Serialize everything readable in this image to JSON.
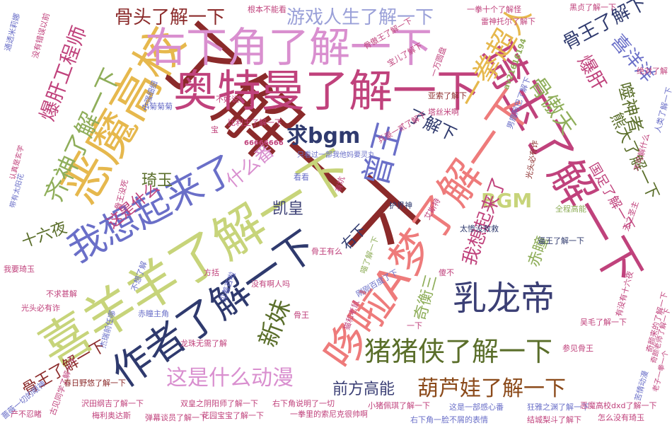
{
  "words": [
    {
      "text": "了解一下",
      "color": "#8b2a2a"
    },
    {
      "text": "喜羊羊了解一下",
      "color": "#c7d47a"
    },
    {
      "text": "奥特曼了解一下",
      "color": "#c0427c"
    },
    {
      "text": "恶魔高校",
      "color": "#e6b84d"
    },
    {
      "text": "右下角了解一下",
      "color": "#d98fcf"
    },
    {
      "text": "琦玉了解一下",
      "color": "#c0427c"
    },
    {
      "text": "哆啦A梦了解一下",
      "color": "#ee7b7b"
    },
    {
      "text": "作者了解一下",
      "color": "#2f3a6e"
    },
    {
      "text": "我想起来了",
      "color": "#6a6fc8"
    },
    {
      "text": "乳龙帝",
      "color": "#3b3f75"
    },
    {
      "text": "猪猪侠了解一下",
      "color": "#5a6e2a"
    },
    {
      "text": "曾王",
      "color": "#6a6fc8"
    },
    {
      "text": "一拳超人",
      "color": "#e6b84d"
    },
    {
      "text": "齐神了解一下",
      "color": "#8fae5a"
    },
    {
      "text": "爆肝工程师",
      "color": "#c0427c"
    },
    {
      "text": "骨头了解一下",
      "color": "#8b2a2a"
    },
    {
      "text": "游戏人生了解一下",
      "color": "#9aa0d8"
    },
    {
      "text": "骨王了解下",
      "color": "#2f3a6e"
    },
    {
      "text": "骨傲天",
      "color": "#8fae5a"
    },
    {
      "text": "熊大了解一下",
      "color": "#5a6e2a"
    },
    {
      "text": "噬神者",
      "color": "#5a6e2a"
    },
    {
      "text": "喜洋洋",
      "color": "#6a6fc8"
    },
    {
      "text": "爆肝",
      "color": "#c0427c"
    },
    {
      "text": "求bgm",
      "color": "#2f3a6e"
    },
    {
      "text": "BGM",
      "color": "#c7d47a"
    },
    {
      "text": "新妹",
      "color": "#5a6e2a"
    },
    {
      "text": "葫芦娃了解一下",
      "color": "#8b4a1a"
    },
    {
      "text": "这是什么动漫",
      "color": "#d98fcf"
    },
    {
      "text": "前方高能",
      "color": "#3b3f75"
    },
    {
      "text": "凯皇",
      "color": "#3b3f75"
    },
    {
      "text": "什么番",
      "color": "#d98fcf"
    },
    {
      "text": "琦玉",
      "color": "#5a6e2a"
    },
    {
      "text": "这是什么",
      "color": "#c0427c"
    },
    {
      "text": "十六夜",
      "color": "#5a6e2a"
    },
    {
      "text": "我想起来了",
      "color": "#c0427c"
    },
    {
      "text": "赤瞳",
      "color": "#8fae5a"
    },
    {
      "text": "奇衡三",
      "color": "#8fae5a"
    },
    {
      "text": "右下",
      "color": "#2f3a6e"
    },
    {
      "text": "骨王了解一下",
      "color": "#8b2a2a"
    },
    {
      "text": "国足了解一下",
      "color": "#c0427c"
    },
    {
      "text": "了解下",
      "color": "#2f3a6e"
    },
    {
      "text": "通透米莉娜",
      "color": "#6a6fc8"
    },
    {
      "text": "没有错误以前",
      "color": "#c0427c"
    },
    {
      "text": "根本不能看",
      "color": "#c0427c"
    },
    {
      "text": "一拳十个了解怪",
      "color": "#c0427c"
    },
    {
      "text": "雷神托尔了解下",
      "color": "#c0427c"
    },
    {
      "text": "黑贞了解一下",
      "color": "#c0427c"
    },
    {
      "text": "骨傲王了解一下",
      "color": "#c0427c"
    },
    {
      "text": "av21616194",
      "color": "#8fae5a"
    },
    {
      "text": "宝儿了解下",
      "color": "#c0427c"
    },
    {
      "text": "一万圆盘",
      "color": "#c0427c"
    },
    {
      "text": "男鹿阿巴了解下",
      "color": "#6a6fc8"
    },
    {
      "text": "人类了解一下",
      "color": "#6a6fc8"
    },
    {
      "text": "亚索了解下",
      "color": "#8b2a2a"
    },
    {
      "text": "塔丝米啊",
      "color": "#c0427c"
    },
    {
      "text": "比利王了解一下",
      "color": "#c0427c"
    },
    {
      "text": "66666666",
      "color": "#c0427c"
    },
    {
      "text": "只看过一部我他妈要灵丸",
      "color": "#6a6fc8"
    },
    {
      "text": "兵豪一贰了解下",
      "color": "#c0427c"
    },
    {
      "text": "光头必有诈",
      "color": "#8b2a2a"
    },
    {
      "text": "不可解什么",
      "color": "#c0427c"
    },
    {
      "text": "小强细细",
      "color": "#6a6fc8"
    },
    {
      "text": "认真是玄学",
      "color": "#c0427c"
    },
    {
      "text": "带有太阳花",
      "color": "#6a6fc8"
    },
    {
      "text": "有坑",
      "color": "#c0427c"
    },
    {
      "text": "护界神",
      "color": "#2f3a6e"
    },
    {
      "text": "艾斯特",
      "color": "#c0427c"
    },
    {
      "text": "全程高能",
      "color": "#8fae5a"
    },
    {
      "text": "天之圣主",
      "color": "#c0427c"
    },
    {
      "text": "骨王有么",
      "color": "#c0427c"
    },
    {
      "text": "太惨没救救",
      "color": "#2f3a6e"
    },
    {
      "text": "逼王了解一下",
      "color": "#2f3a6e"
    },
    {
      "text": "喵了解一下",
      "color": "#8fae5a"
    },
    {
      "text": "没有啊人吗",
      "color": "#c0427c"
    },
    {
      "text": "见着百啦",
      "color": "#6a6fc8"
    },
    {
      "text": "赤瞳主角",
      "color": "#6a6fc8"
    },
    {
      "text": "猫和老鼠",
      "color": "#c0427c"
    },
    {
      "text": "杰瑞前任哪",
      "color": "#6a6fc8"
    },
    {
      "text": "有没有十六夜",
      "color": "#c0427c"
    },
    {
      "text": "奇颜来的了解一下",
      "color": "#c0427c"
    },
    {
      "text": "吴毛了解一下",
      "color": "#c0427c"
    },
    {
      "text": "参见骨王",
      "color": "#c0427c"
    },
    {
      "text": "苦情动漫",
      "color": "#6a6fc8"
    },
    {
      "text": "龙珠无需了解",
      "color": "#c0427c"
    },
    {
      "text": "春日野悠了解一下",
      "color": "#8b2a2a"
    },
    {
      "text": "沢田纲吉了解一下",
      "color": "#c0427c"
    },
    {
      "text": "梅利奥达斯",
      "color": "#c0427c"
    },
    {
      "text": "蔷薇一切的眼神",
      "color": "#6a6fc8"
    },
    {
      "text": "产不忍睹",
      "color": "#c0427c"
    },
    {
      "text": "双皇之阴阳师了解一下",
      "color": "#c0427c"
    },
    {
      "text": "右下角说明了一切",
      "color": "#c0427c"
    },
    {
      "text": "小猪佩琪了解一下",
      "color": "#c0427c"
    },
    {
      "text": "这是一部感心番",
      "color": "#6a6fc8"
    },
    {
      "text": "狂雅之渊了解一下",
      "color": "#6a6fc8"
    },
    {
      "text": "一拳里的索尼克很帅啊",
      "color": "#c0427c"
    },
    {
      "text": "花园宝宝了解一下",
      "color": "#c0427c"
    },
    {
      "text": "右下角一脸不屑的表情",
      "color": "#6a6fc8"
    },
    {
      "text": "结城梨斗了解下",
      "color": "#c0427c"
    },
    {
      "text": "恶魔高校dxd了解一下",
      "color": "#c0427c"
    },
    {
      "text": "弹幕谈员了解一下",
      "color": "#c0427c"
    },
    {
      "text": "怎么没有琦玉",
      "color": "#c0427c"
    },
    {
      "text": "古见同学了解一下",
      "color": "#c0427c"
    },
    {
      "text": "奇颜老师了解一下",
      "color": "#c0427c"
    },
    {
      "text": "老子一拳一个",
      "color": "#c0427c"
    },
    {
      "text": "我要琦玉",
      "color": "#c0427c"
    },
    {
      "text": "不想了解",
      "color": "#6a6fc8"
    },
    {
      "text": "刚刚百度了下",
      "color": "#6a6fc8"
    },
    {
      "text": "骨王没死",
      "color": "#c0427c"
    },
    {
      "text": "绝对了解",
      "color": "#c0427c"
    },
    {
      "text": "方括",
      "color": "#c0427c"
    },
    {
      "text": "宝",
      "color": "#c0427c"
    },
    {
      "text": "不求甚解",
      "color": "#c0427c"
    },
    {
      "text": "看看",
      "color": "#6a6fc8"
    },
    {
      "text": "小菊菊菊",
      "color": "#6a6fc8"
    },
    {
      "text": "光头必有诈",
      "color": "#c0427c"
    },
    {
      "text": "傻不",
      "color": "#c0427c"
    },
    {
      "text": "骨王",
      "color": "#c0427c"
    },
    {
      "text": "一下",
      "color": "#c0427c"
    },
    {
      "text": "不好说",
      "color": "#c0427c"
    }
  ]
}
